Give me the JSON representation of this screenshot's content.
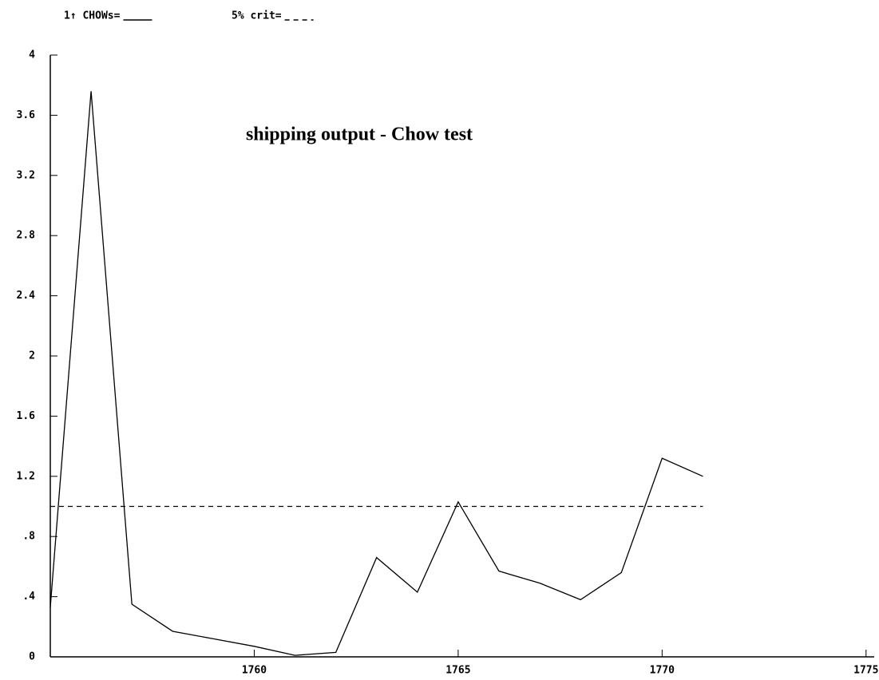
{
  "chart_data": {
    "type": "line",
    "title": "shipping output - Chow test",
    "x": [
      1755,
      1756,
      1757,
      1758,
      1759,
      1760,
      1761,
      1762,
      1763,
      1764,
      1765,
      1766,
      1767,
      1768,
      1769,
      1770,
      1771
    ],
    "series": [
      {
        "name": "1↑ CHOWs=",
        "color": "#000000",
        "dash": false,
        "values": [
          0.33,
          3.76,
          0.35,
          0.17,
          0.12,
          0.07,
          0.01,
          0.03,
          0.66,
          0.43,
          1.03,
          0.57,
          0.49,
          0.38,
          0.56,
          1.32,
          1.2
        ]
      },
      {
        "name": "5% crit=",
        "color": "#000000",
        "dash": true,
        "values": [
          1,
          1,
          1,
          1,
          1,
          1,
          1,
          1,
          1,
          1,
          1,
          1,
          1,
          1,
          1,
          1,
          1
        ]
      }
    ],
    "xlim": [
      1755,
      1775.2
    ],
    "xticks": [
      1760,
      1765,
      1770,
      1775
    ],
    "ylim": [
      0,
      4
    ],
    "yticks": [
      0,
      {
        "value": 0.4,
        "label": ".4"
      },
      {
        "value": 0.8,
        "label": ".8"
      },
      1.2,
      1.6,
      2,
      2.4,
      2.8,
      3.2,
      3.6,
      4
    ]
  }
}
